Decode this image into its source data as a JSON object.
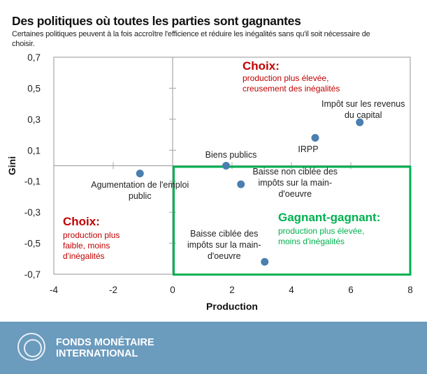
{
  "header": {
    "title": "Des politiques où toutes les parties sont gagnantes",
    "subtitle": "Certaines politiques peuvent à la fois accroître l'efficience et réduire les inégalités sans qu'il soit nécessaire de choisir."
  },
  "chart_data": {
    "type": "scatter",
    "xlabel": "Production",
    "ylabel": "Gini",
    "xlim": [
      -4,
      8
    ],
    "ylim": [
      -0.7,
      0.7
    ],
    "xticks": [
      "-4",
      "-2",
      "0",
      "2",
      "4",
      "6",
      "8"
    ],
    "yticks": [
      "0,7",
      "0,5",
      "0,3",
      "0,1",
      "-0,1",
      "-0,3",
      "-0,5",
      "-0,7"
    ],
    "point_color": "#4a7fb0",
    "points": [
      {
        "label": "Agumentation de l'emploi public",
        "x": -1.1,
        "y": -0.05
      },
      {
        "label": "Biens publics",
        "x": 1.8,
        "y": 0.0
      },
      {
        "label": "Baisse non ciblée des impôts sur la main-d'oeuvre",
        "x": 2.3,
        "y": -0.12
      },
      {
        "label": "IRPP",
        "x": 4.8,
        "y": 0.18
      },
      {
        "label": "Impôt sur les revenus du capital",
        "x": 6.3,
        "y": 0.28
      },
      {
        "label": "Baisse ciblée des impôts sur la main-d'oeuvre",
        "x": 3.1,
        "y": -0.62
      }
    ],
    "annotations": {
      "top_right": {
        "title": "Choix:",
        "text": "production plus élevée, creusement des inégalités",
        "color": "#c00000"
      },
      "bottom_left": {
        "title": "Choix:",
        "text": "production plus faible, moins d'inégalités",
        "color": "#c00000"
      },
      "bottom_right": {
        "title": "Gagnant-gagnant:",
        "text": "production plus élevée, moins d'inégalités",
        "color": "#00b050"
      }
    }
  },
  "footer": {
    "org_line1": "FONDS MONÉTAIRE",
    "org_line2": "INTERNATIONAL"
  }
}
